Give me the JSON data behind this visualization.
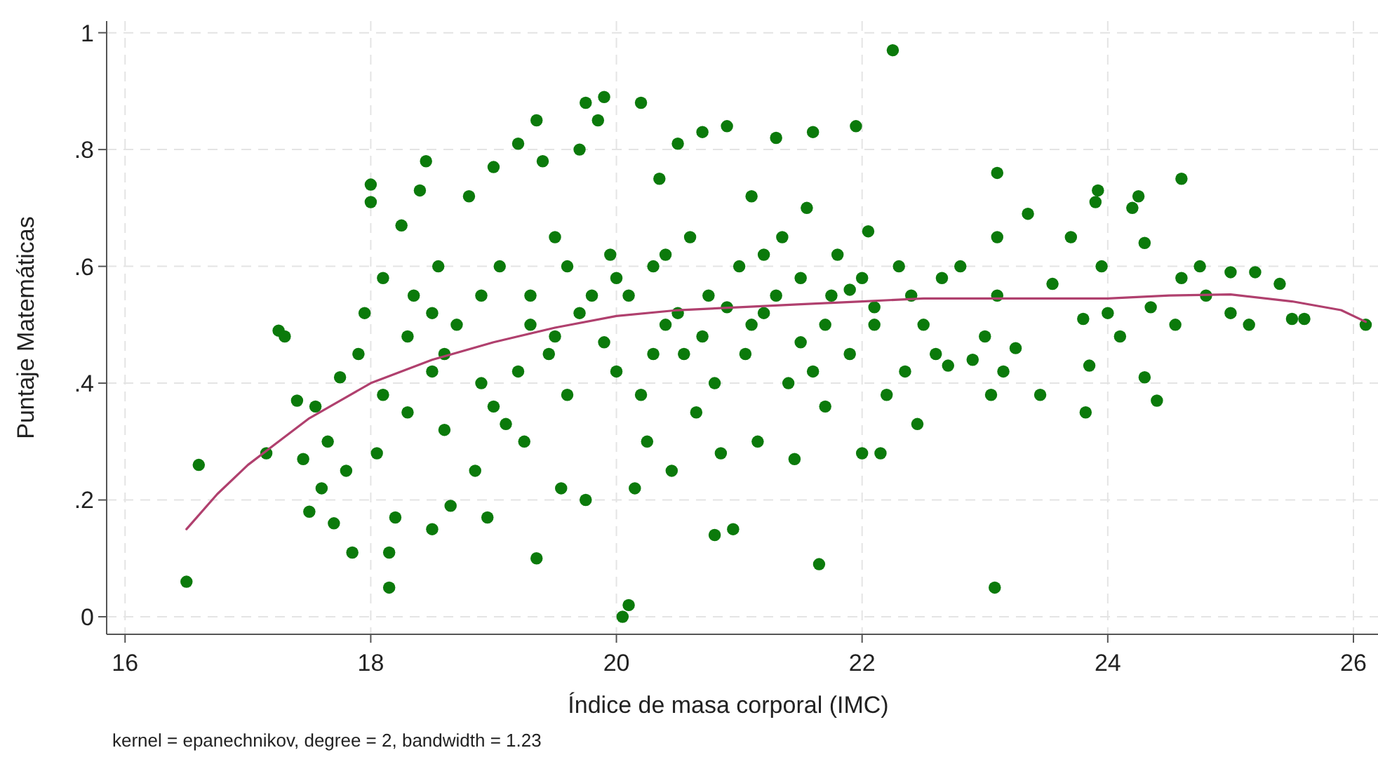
{
  "chart_data": {
    "type": "scatter",
    "xlabel": "Índice de masa corporal (IMC)",
    "ylabel": "Puntaje Matemáticas",
    "annotations": [
      "kernel = epanechnikov, degree = 2, bandwidth = 1.23"
    ],
    "xlim": [
      15.85,
      26.2
    ],
    "xticks": [
      16,
      18,
      20,
      22,
      24,
      26
    ],
    "ylim": [
      -0.03,
      1.02
    ],
    "yticks": [
      0,
      {
        "value": 0.2,
        "label": ".2"
      },
      {
        "value": 0.4,
        "label": ".4"
      },
      {
        "value": 0.6,
        "label": ".6"
      },
      {
        "value": 0.8,
        "label": ".8"
      },
      1
    ],
    "grid": true,
    "series": [
      {
        "marker": "circle",
        "color": "#0b7a0b",
        "x": [
          16.5,
          16.6,
          17.15,
          17.25,
          17.3,
          17.4,
          17.45,
          17.5,
          17.55,
          17.6,
          17.65,
          17.7,
          17.75,
          17.8,
          17.85,
          17.9,
          17.95,
          18.0,
          18.0,
          18.05,
          18.1,
          18.15,
          18.15,
          18.2,
          18.25,
          18.3,
          18.35,
          18.4,
          18.45,
          18.5,
          18.5,
          18.55,
          18.6,
          18.65,
          18.7,
          18.8,
          18.85,
          18.9,
          18.95,
          19.0,
          19.05,
          19.1,
          19.2,
          19.25,
          19.3,
          19.35,
          19.35,
          19.4,
          19.45,
          19.5,
          19.55,
          19.6,
          19.7,
          19.75,
          19.75,
          19.8,
          19.85,
          19.9,
          19.95,
          20.0,
          20.05,
          20.1,
          20.15,
          20.2,
          20.25,
          20.3,
          20.35,
          20.4,
          20.45,
          20.5,
          20.55,
          20.6,
          20.65,
          20.7,
          20.75,
          20.8,
          20.85,
          20.9,
          20.95,
          21.0,
          21.05,
          21.1,
          21.15,
          21.2,
          21.3,
          21.35,
          21.4,
          21.45,
          21.5,
          21.55,
          21.6,
          21.65,
          21.7,
          21.75,
          21.8,
          21.9,
          21.95,
          22.0,
          22.05,
          22.1,
          22.15,
          22.2,
          22.25,
          22.3,
          22.35,
          22.4,
          22.45,
          22.5,
          22.6,
          22.65,
          22.7,
          22.8,
          22.9,
          23.0,
          23.05,
          23.08,
          23.1,
          23.1,
          23.1,
          23.15,
          23.25,
          23.35,
          23.45,
          23.55,
          23.7,
          23.8,
          23.82,
          23.85,
          23.9,
          23.92,
          23.95,
          24.0,
          24.1,
          24.2,
          24.25,
          24.3,
          24.3,
          24.35,
          24.4,
          24.55,
          24.6,
          24.6,
          24.75,
          24.8,
          25.0,
          25.0,
          25.15,
          25.2,
          25.4,
          25.5,
          25.6,
          26.1,
          19.3,
          19.5,
          19.7,
          19.9,
          20.1,
          20.3,
          20.5,
          20.7,
          20.9,
          21.1,
          21.3,
          21.5,
          21.7,
          21.9,
          22.1,
          18.3,
          18.6,
          18.9,
          19.2,
          19.6,
          20.0,
          20.4,
          20.8,
          21.2,
          21.6,
          22.0,
          18.1,
          18.5,
          19.0,
          20.2
        ],
        "values": [
          0.06,
          0.26,
          0.28,
          0.49,
          0.48,
          0.37,
          0.27,
          0.18,
          0.36,
          0.22,
          0.3,
          0.16,
          0.41,
          0.25,
          0.11,
          0.45,
          0.52,
          0.74,
          0.71,
          0.28,
          0.58,
          0.11,
          0.05,
          0.17,
          0.67,
          0.35,
          0.55,
          0.73,
          0.78,
          0.15,
          0.42,
          0.6,
          0.32,
          0.19,
          0.5,
          0.72,
          0.25,
          0.4,
          0.17,
          0.77,
          0.6,
          0.33,
          0.81,
          0.3,
          0.55,
          0.85,
          0.1,
          0.78,
          0.45,
          0.65,
          0.22,
          0.38,
          0.8,
          0.88,
          0.2,
          0.55,
          0.85,
          0.89,
          0.62,
          0.42,
          0.0,
          0.02,
          0.22,
          0.88,
          0.3,
          0.6,
          0.75,
          0.5,
          0.25,
          0.81,
          0.45,
          0.65,
          0.35,
          0.83,
          0.55,
          0.14,
          0.28,
          0.84,
          0.15,
          0.6,
          0.45,
          0.72,
          0.3,
          0.52,
          0.82,
          0.65,
          0.4,
          0.27,
          0.58,
          0.7,
          0.83,
          0.09,
          0.36,
          0.55,
          0.62,
          0.45,
          0.84,
          0.28,
          0.66,
          0.5,
          0.28,
          0.38,
          0.97,
          0.6,
          0.42,
          0.55,
          0.33,
          0.5,
          0.45,
          0.58,
          0.43,
          0.6,
          0.44,
          0.48,
          0.38,
          0.05,
          0.76,
          0.65,
          0.55,
          0.42,
          0.46,
          0.69,
          0.38,
          0.57,
          0.65,
          0.51,
          0.35,
          0.43,
          0.71,
          0.73,
          0.6,
          0.52,
          0.48,
          0.7,
          0.72,
          0.41,
          0.64,
          0.53,
          0.37,
          0.5,
          0.75,
          0.58,
          0.6,
          0.55,
          0.59,
          0.52,
          0.5,
          0.59,
          0.57,
          0.51,
          0.51,
          0.5,
          0.5,
          0.48,
          0.52,
          0.47,
          0.55,
          0.45,
          0.52,
          0.48,
          0.53,
          0.5,
          0.55,
          0.47,
          0.5,
          0.56,
          0.53,
          0.48,
          0.45,
          0.55,
          0.42,
          0.6,
          0.58,
          0.62,
          0.4,
          0.62,
          0.42,
          0.58,
          0.38,
          0.52,
          0.36,
          0.38
        ]
      },
      {
        "type": "line",
        "marker": "none",
        "color": "#b0406e",
        "x": [
          16.5,
          16.75,
          17,
          17.25,
          17.5,
          17.75,
          18,
          18.5,
          19,
          19.5,
          20,
          20.5,
          21,
          21.5,
          22,
          22.5,
          23,
          23.5,
          24,
          24.5,
          25,
          25.5,
          25.9,
          26.1
        ],
        "values": [
          0.15,
          0.21,
          0.26,
          0.3,
          0.34,
          0.37,
          0.4,
          0.44,
          0.47,
          0.495,
          0.515,
          0.525,
          0.53,
          0.535,
          0.54,
          0.545,
          0.545,
          0.545,
          0.545,
          0.55,
          0.552,
          0.54,
          0.525,
          0.505
        ]
      }
    ]
  }
}
